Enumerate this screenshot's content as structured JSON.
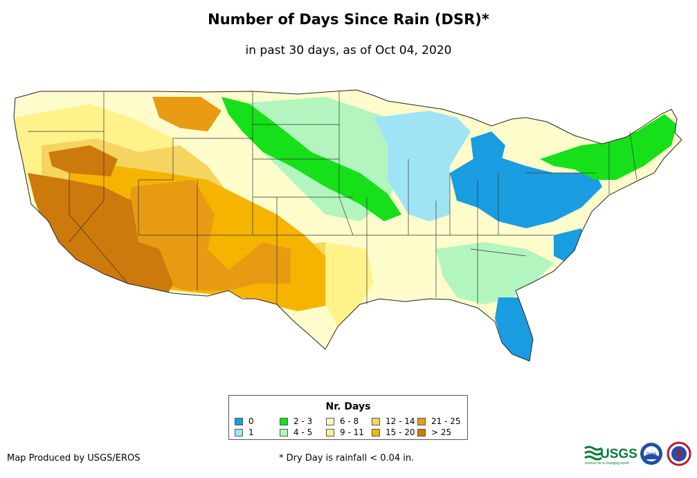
{
  "header": {
    "title": "Number of Days Since Rain (DSR)*",
    "subtitle": "in past 30 days, as of Oct 04, 2020"
  },
  "legend": {
    "title": "Nr. Days",
    "classes": [
      {
        "label": "0",
        "color": "#1a9ce0"
      },
      {
        "label": "1",
        "color": "#9fe4f5"
      },
      {
        "label": "2 - 3",
        "color": "#16e019"
      },
      {
        "label": "4 - 5",
        "color": "#b2f5bf"
      },
      {
        "label": "6 - 8",
        "color": "#fffccc"
      },
      {
        "label": "9 - 11",
        "color": "#fff28a"
      },
      {
        "label": "12 - 14",
        "color": "#f5d560"
      },
      {
        "label": "15 - 20",
        "color": "#f5b400"
      },
      {
        "label": "21 - 25",
        "color": "#e89b12"
      },
      {
        "label": "> 25",
        "color": "#cc7a0c"
      }
    ]
  },
  "footer": {
    "credit": "Map Produced by USGS/EROS",
    "footnote": "* Dry Day is rainfall < 0.04 in."
  },
  "logos": {
    "usgs_text": "USGS",
    "usgs_tagline": "science for a changing world",
    "noaa_text": "noaa"
  }
}
